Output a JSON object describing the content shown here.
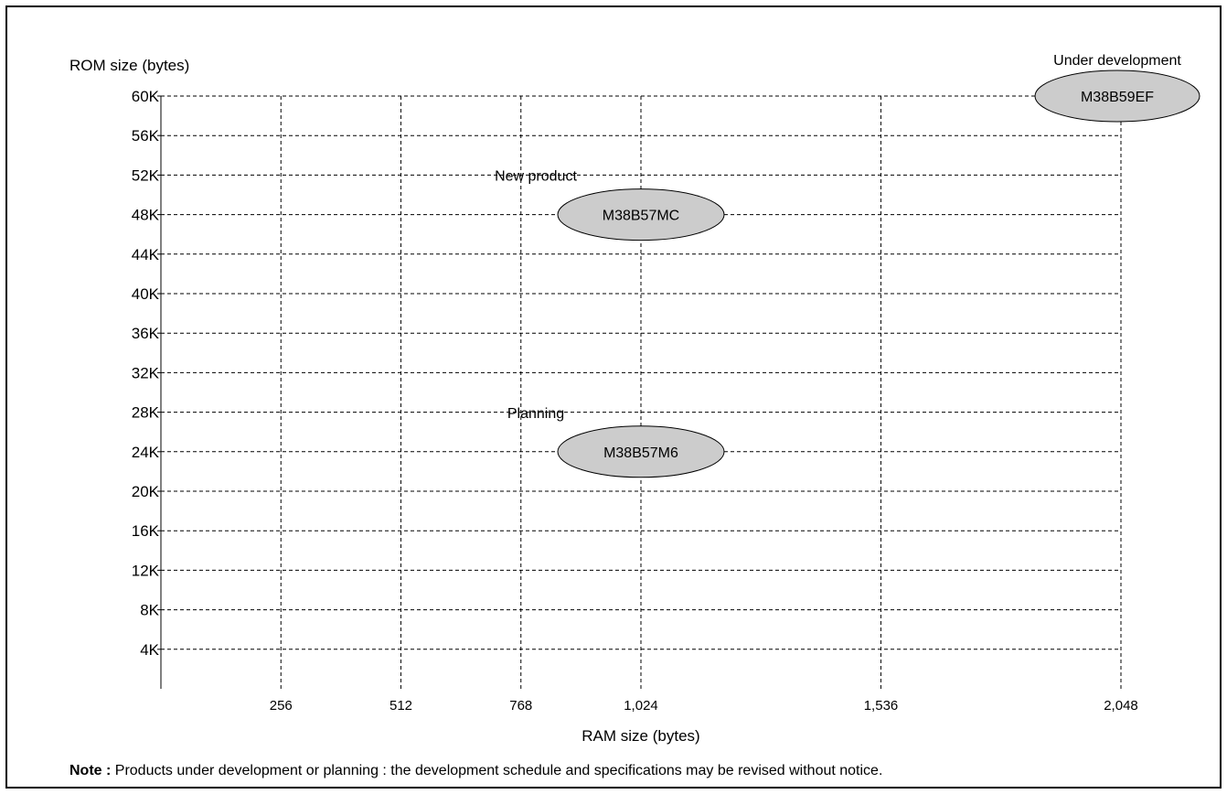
{
  "chart_data": {
    "type": "scatter",
    "xlabel": "RAM size (bytes)",
    "ylabel": "ROM size (bytes)",
    "xlim": [
      0,
      2048
    ],
    "ylim": [
      0,
      60
    ],
    "x_ticks": [
      256,
      512,
      768,
      1024,
      1536,
      2048
    ],
    "x_tick_labels": [
      "256",
      "512",
      "768",
      "1,024",
      "1,536",
      "2,048"
    ],
    "y_ticks": [
      4,
      8,
      12,
      16,
      20,
      24,
      28,
      32,
      36,
      40,
      44,
      48,
      52,
      56,
      60
    ],
    "y_tick_labels": [
      "4K",
      "8K",
      "12K",
      "16K",
      "20K",
      "24K",
      "28K",
      "32K",
      "36K",
      "40K",
      "44K",
      "48K",
      "52K",
      "56K",
      "60K"
    ],
    "grid": true,
    "points": [
      {
        "label": "M38B59EF",
        "status": "Under development",
        "x": 2048,
        "y": 60
      },
      {
        "label": "M38B57MC",
        "status": "New product",
        "x": 1024,
        "y": 48
      },
      {
        "label": "M38B57M6",
        "status": "Planning",
        "x": 1024,
        "y": 24
      }
    ],
    "colors": {
      "bubble_fill": "#cccccc",
      "grid": "#000000"
    }
  },
  "note": {
    "prefix": "Note :",
    "text": "Products under development or planning : the development schedule and specifications may be revised without notice."
  }
}
